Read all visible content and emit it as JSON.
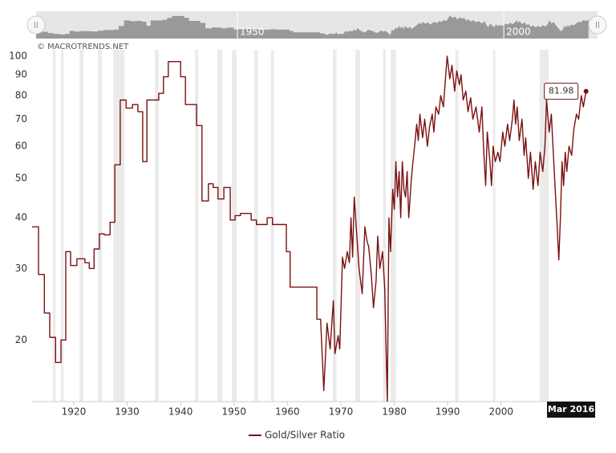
{
  "chart_data": {
    "type": "line",
    "credit": "© MACROTRENDS.NET",
    "log_scale": true,
    "grid": false,
    "legend": "bottom",
    "xlim": [
      1912.2,
      2017.6
    ],
    "xticks": [
      1920,
      1930,
      1940,
      1950,
      1960,
      1970,
      1980,
      1990,
      2000
    ],
    "ylim": [
      14.1,
      103.7
    ],
    "yticks": [
      20,
      30,
      40,
      50,
      60,
      70,
      80,
      90,
      100
    ],
    "crosshair_label": "Mar 2016",
    "navigator_ticks": [
      1950,
      2000
    ],
    "band_color": "#ebebeb",
    "bands": [
      [
        1916.1,
        1916.6
      ],
      [
        1917.6,
        1918.1
      ],
      [
        1921.1,
        1921.8
      ],
      [
        1924.5,
        1925.3
      ],
      [
        1927.4,
        1929.5
      ],
      [
        1935.2,
        1935.9
      ],
      [
        1942.7,
        1943.3
      ],
      [
        1946.9,
        1947.8
      ],
      [
        1949.6,
        1950.5
      ],
      [
        1953.8,
        1954.5
      ],
      [
        1956.9,
        1957.5
      ],
      [
        1968.5,
        1969.2
      ],
      [
        1972.7,
        1973.6
      ],
      [
        1977.9,
        1978.4
      ],
      [
        1979.3,
        1980.3
      ],
      [
        1991.4,
        1992.0
      ],
      [
        1998.5,
        1998.9
      ],
      [
        2007.2,
        2008.9
      ]
    ],
    "series": [
      {
        "name": "Gold/Silver Ratio",
        "color": "#7b1010",
        "x": [
          1912.2,
          1913.4,
          1913.4,
          1914.5,
          1914.5,
          1915.5,
          1915.5,
          1916.6,
          1916.6,
          1917.6,
          1917.6,
          1918.5,
          1918.5,
          1919.4,
          1919.4,
          1920.6,
          1920.6,
          1922.1,
          1922.1,
          1922.9,
          1922.9,
          1923.8,
          1923.8,
          1924.8,
          1924.8,
          1925.7,
          1925.7,
          1926.8,
          1926.8,
          1927.7,
          1927.7,
          1928.7,
          1928.7,
          1929.8,
          1929.8,
          1931.0,
          1931.0,
          1932.0,
          1932.0,
          1932.9,
          1932.9,
          1933.7,
          1933.7,
          1935.9,
          1935.9,
          1936.8,
          1936.8,
          1937.7,
          1937.7,
          1940.0,
          1940.0,
          1940.9,
          1940.9,
          1943.0,
          1943.0,
          1944.0,
          1944.0,
          1945.2,
          1945.2,
          1946.1,
          1946.1,
          1947.0,
          1947.0,
          1948.1,
          1948.1,
          1949.3,
          1949.3,
          1950.2,
          1950.2,
          1951.2,
          1951.2,
          1953.2,
          1953.2,
          1954.2,
          1954.2,
          1956.2,
          1956.2,
          1957.2,
          1957.2,
          1959.8,
          1959.8,
          1960.5,
          1960.5,
          1965.5,
          1965.5,
          1966.2,
          1966.8,
          1967.4,
          1968.0,
          1968.6,
          1968.9,
          1969.5,
          1969.8,
          1970.3,
          1970.7,
          1971.2,
          1971.6,
          1971.9,
          1972.2,
          1972.5,
          1973.0,
          1973.4,
          1974.0,
          1974.5,
          1974.9,
          1975.2,
          1975.7,
          1976.1,
          1976.6,
          1976.9,
          1977.3,
          1977.8,
          1978.2,
          1978.7,
          1979.0,
          1979.3,
          1979.7,
          1980.0,
          1980.3,
          1980.6,
          1980.9,
          1981.2,
          1981.5,
          1981.8,
          1982.1,
          1982.4,
          1982.7,
          1983.2,
          1983.5,
          1983.8,
          1984.2,
          1984.5,
          1984.8,
          1985.3,
          1985.7,
          1986.2,
          1986.6,
          1987.1,
          1987.4,
          1987.8,
          1988.3,
          1988.7,
          1989.2,
          1989.5,
          1989.9,
          1990.4,
          1990.8,
          1991.3,
          1991.7,
          1992.2,
          1992.5,
          1992.9,
          1993.4,
          1993.8,
          1994.3,
          1994.7,
          1995.3,
          1995.9,
          1996.4,
          1996.7,
          1997.1,
          1997.4,
          1997.9,
          1998.2,
          1998.5,
          1998.9,
          1999.4,
          1999.8,
          2000.3,
          2000.7,
          2001.2,
          2001.6,
          2002.1,
          2002.4,
          2002.7,
          2003.0,
          2003.4,
          2003.9,
          2004.3,
          2004.6,
          2005.1,
          2005.5,
          2006.0,
          2006.4,
          2006.9,
          2007.3,
          2007.8,
          2008.2,
          2008.5,
          2009.0,
          2009.4,
          2009.7,
          2010.2,
          2010.5,
          2010.8,
          2011.1,
          2011.4,
          2011.7,
          2012.0,
          2012.3,
          2012.7,
          2013.2,
          2013.6,
          2014.1,
          2014.5,
          2015.0,
          2015.4,
          2015.9
        ],
        "values": [
          38,
          38,
          29,
          29,
          23.3,
          23.3,
          20.3,
          20.3,
          17.6,
          17.6,
          20,
          20,
          33,
          33,
          30.5,
          30.5,
          31.7,
          31.7,
          31,
          31,
          30,
          30,
          33.5,
          33.5,
          36.5,
          36.5,
          36.3,
          36.3,
          39,
          39,
          54,
          54,
          78,
          78,
          74.5,
          74.5,
          76,
          76,
          73,
          73,
          55,
          55,
          78,
          78,
          81,
          81,
          89,
          89,
          97,
          97,
          89,
          89,
          76,
          76,
          67.5,
          67.5,
          44,
          44,
          48.5,
          48.5,
          47.5,
          47.5,
          44.5,
          44.5,
          47.5,
          47.5,
          39.5,
          39.5,
          40.5,
          40.5,
          41,
          41,
          39.5,
          39.5,
          38.5,
          38.5,
          40,
          40,
          38.5,
          38.5,
          33,
          33,
          27,
          27,
          22.5,
          22.5,
          15,
          22,
          19,
          25,
          18.5,
          20.5,
          19,
          32,
          30,
          33,
          31,
          40,
          32,
          45,
          36,
          30,
          26,
          38,
          35,
          34,
          29,
          24,
          28,
          36,
          30,
          33,
          27,
          14,
          40,
          33,
          47,
          42,
          55,
          45,
          52,
          40,
          55,
          47,
          45,
          52,
          40,
          50,
          55,
          60,
          68,
          62,
          72,
          63,
          70,
          60,
          67,
          72,
          65,
          75,
          72,
          80,
          75,
          85,
          100,
          88,
          95,
          82,
          92,
          85,
          90,
          78,
          82,
          73,
          79,
          70,
          75,
          65,
          75,
          60,
          48,
          65,
          55,
          48,
          60,
          55,
          58,
          55,
          65,
          60,
          68,
          62,
          70,
          78,
          68,
          75,
          62,
          70,
          57,
          63,
          50,
          58,
          47,
          55,
          48,
          58,
          52,
          60,
          78,
          65,
          72,
          60,
          45,
          38,
          31.5,
          40,
          55,
          48,
          58,
          52,
          60,
          57,
          66,
          72,
          70,
          80,
          75,
          81.98
        ]
      }
    ]
  }
}
